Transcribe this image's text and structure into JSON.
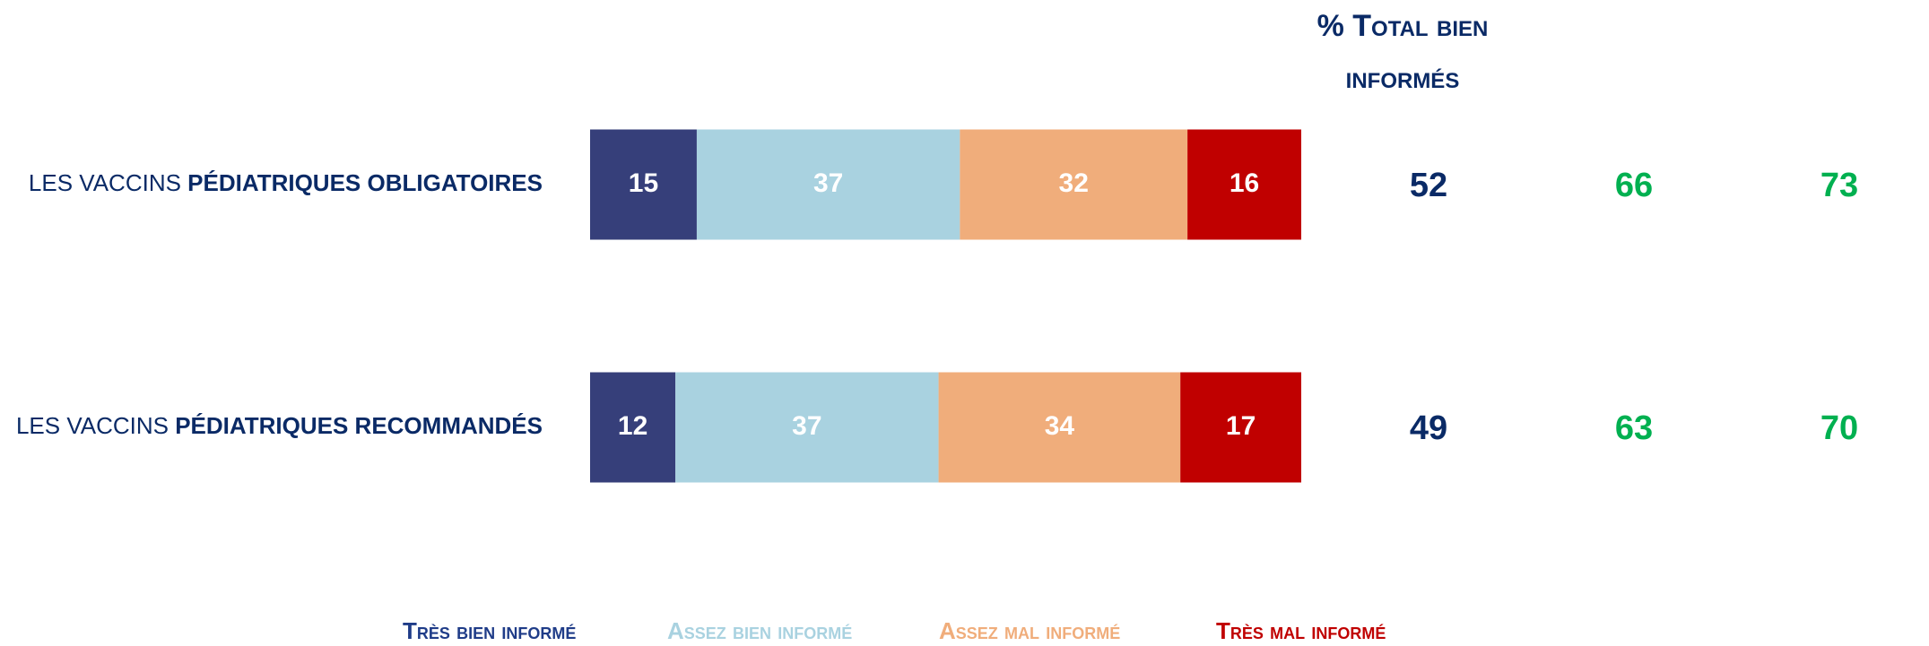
{
  "chart_data": {
    "type": "stacked-bar-horizontal",
    "categories": [
      "LES VACCINS PÉDIATRIQUES OBLIGATOIRES",
      "LES VACCINS PÉDIATRIQUES RECOMMANDÉS"
    ],
    "xlim": [
      0,
      100
    ],
    "series": [
      {
        "name": "Très bien informé",
        "color": "#363f7a",
        "legend_color": "#1f3c88",
        "label_color": "#ffffff",
        "values": [
          15,
          12
        ]
      },
      {
        "name": "Assez bien informé",
        "color": "#a9d2e0",
        "legend_color": "#a9d2e0",
        "label_color": "#ffffff",
        "values": [
          37,
          37
        ]
      },
      {
        "name": "Assez mal informé",
        "color": "#f0ad7b",
        "legend_color": "#f0ad7b",
        "label_color": "#ffffff",
        "values": [
          32,
          34
        ]
      },
      {
        "name": "Très mal informé",
        "color": "#c00000",
        "legend_color": "#c00000",
        "label_color": "#ffffff",
        "values": [
          16,
          17
        ]
      }
    ],
    "extra_columns": [
      {
        "title": "% Total bien informés",
        "color": "#0a2a66",
        "values": [
          52,
          49
        ]
      },
      {
        "color": "#00b050",
        "values": [
          66,
          63
        ]
      },
      {
        "color": "#00b050",
        "values": [
          73,
          70
        ]
      }
    ]
  }
}
